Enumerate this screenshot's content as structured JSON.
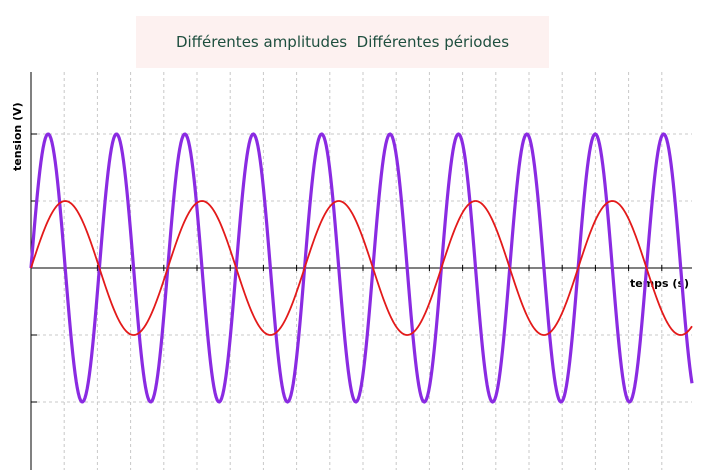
{
  "chart_data": {
    "type": "line",
    "title": "Différentes amplitudes  Différentes périodes",
    "xlabel": "temps (s)",
    "ylabel": "tension (V)",
    "grid": true,
    "xlim": [
      0,
      20
    ],
    "ylim": [
      -3,
      3
    ],
    "series": [
      {
        "color": "#8a2be2",
        "amplitude": 2,
        "period": 2.06,
        "points": [
          [
            0,
            0
          ],
          [
            0.515,
            2
          ],
          [
            1.03,
            0
          ],
          [
            1.545,
            -2
          ],
          [
            2.06,
            0
          ],
          [
            2.575,
            2
          ],
          [
            3.09,
            0
          ],
          [
            3.605,
            -2
          ],
          [
            4.12,
            0
          ]
        ]
      },
      {
        "color": "#e31a1a",
        "amplitude": 1,
        "period": 4.12,
        "points": [
          [
            0,
            0
          ],
          [
            1.03,
            1
          ],
          [
            2.06,
            0
          ],
          [
            3.09,
            -1
          ],
          [
            4.12,
            0
          ]
        ]
      }
    ]
  }
}
